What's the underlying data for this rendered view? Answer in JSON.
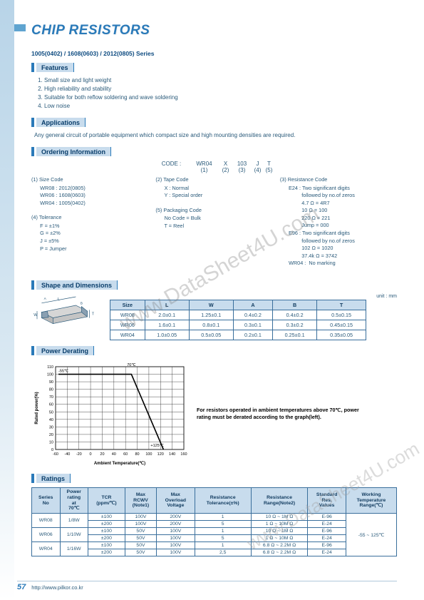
{
  "page": {
    "title": "CHIP RESISTORS",
    "series_line": "1005(0402) / 1608(0603) / 2012(0805) Series",
    "page_number": "57",
    "footer_url": "http://www.pilkor.co.kr",
    "watermark": "www.DataSheet4U.com"
  },
  "section_labels": {
    "features": "Features",
    "applications": "Applications",
    "ordering": "Ordering Information",
    "shape": "Shape and Dimensions",
    "derating": "Power Derating",
    "ratings": "Ratings"
  },
  "features": [
    "Small size and light weight",
    "High reliability and stability",
    "Suitable for both reflow soldering and wave soldering",
    "Low noise"
  ],
  "applications_text": "Any general circuit of portable equipment which compact size and high mounting densities are required.",
  "ordering": {
    "code_label": "CODE : ",
    "parts": [
      "WR04",
      "X",
      "103",
      "J",
      "T"
    ],
    "indices": [
      "(1)",
      "(2)",
      "(3)",
      "(4)",
      "(5)"
    ],
    "col1_a": {
      "title": "(1) Size Code",
      "lines": [
        "WR08 : 2012(0805)",
        "WR06 : 1608(0603)",
        "WR04 : 1005(0402)"
      ]
    },
    "col2_a": {
      "title": "(2) Tape Code",
      "lines": [
        "X : Normal",
        "Y : Special order"
      ]
    },
    "col3_a": {
      "title": "(3) Resistance Code",
      "lines": [
        "E24 : Two significant digits",
        "         followed by no.of zeros",
        "         4.7 Ω = 4R7",
        "         10 Ω = 100",
        "         220 Ω = 221",
        "         Jump = 000",
        "E96 : Two significant digits",
        "         followed by no.of zeros",
        "         102 Ω = 1020",
        "         37.4k Ω = 3742",
        "WR04 :  No marking"
      ]
    },
    "col1_b": {
      "title": "(4) Tolerance",
      "lines": [
        "F = ±1%",
        "G = ±2%",
        "J = ±5%",
        "P = Jumper"
      ]
    },
    "col2_b": {
      "title": "(5) Packaging Code",
      "lines": [
        "No Code = Bulk",
        "T = Reel"
      ]
    }
  },
  "dimensions": {
    "unit_label": "unit : mm",
    "dim_labels": {
      "L": "L",
      "W": "W",
      "A": "A",
      "B": "B",
      "T": "T"
    },
    "columns": [
      "Size",
      "L",
      "W",
      "A",
      "B",
      "T"
    ],
    "rows": [
      [
        "WR08",
        "2.0±0.1",
        "1.25±0.1",
        "0.4±0.2",
        "0.4±0.2",
        "0.5±0.15"
      ],
      [
        "WR06",
        "1.6±0.1",
        "0.8±0.1",
        "0.3±0.1",
        "0.3±0.2",
        "0.45±0.15"
      ],
      [
        "WR04",
        "1.0±0.05",
        "0.5±0.05",
        "0.2±0.1",
        "0.25±0.1",
        "0.35±0.05"
      ]
    ]
  },
  "derating": {
    "xlabel": "Ambient Temperature(℃)",
    "ylabel": "Rated power(%)",
    "xlim": [
      -60,
      160
    ],
    "ylim": [
      0,
      110
    ],
    "xticks": [
      -60,
      -40,
      -20,
      0,
      20,
      40,
      60,
      80,
      100,
      120,
      140,
      160
    ],
    "yticks": [
      0,
      10,
      20,
      30,
      40,
      50,
      60,
      70,
      80,
      90,
      100,
      110
    ],
    "annot": {
      "a": "-55℃",
      "b": "70℃",
      "c": "+125℃"
    },
    "note": "For resistors operated in ambient temperatures above 70℃, power rating must be derated according to the graph(left).",
    "line_points": [
      [
        -55,
        100
      ],
      [
        70,
        100
      ],
      [
        125,
        0
      ]
    ],
    "colors": {
      "grid": "#222",
      "line": "#000",
      "bg": "#ffffff"
    }
  },
  "ratings": {
    "columns": [
      "Series No",
      "Power rating at 70℃",
      "TCR (ppm/℃)",
      "Max RCWV (Note1)",
      "Max Overload Voltage",
      "Resistance Tolerance(±%)",
      "Resistance Range(Note2)",
      "Standard Res. Values",
      "Working Temperature Range(℃)"
    ],
    "rows": [
      {
        "series": "WR08",
        "power": "1/8W",
        "sub": [
          {
            "tcr": "±100",
            "rcwv": "100V",
            "ov": "200V",
            "tol": "1",
            "range": "10 Ω ~ 1M Ω",
            "std": "E-96"
          },
          {
            "tcr": "±200",
            "rcwv": "100V",
            "ov": "200V",
            "tol": "5",
            "range": "1 Ω ~ 10M Ω",
            "std": "E-24"
          }
        ]
      },
      {
        "series": "WR06",
        "power": "1/10W",
        "sub": [
          {
            "tcr": "±100",
            "rcwv": "50V",
            "ov": "100V",
            "tol": "1",
            "range": "10 Ω ~ 1M Ω",
            "std": "E-96"
          },
          {
            "tcr": "±200",
            "rcwv": "50V",
            "ov": "100V",
            "tol": "5",
            "range": "1 Ω ~ 10M Ω",
            "std": "E-24"
          }
        ]
      },
      {
        "series": "WR04",
        "power": "1/16W",
        "sub": [
          {
            "tcr": "±100",
            "rcwv": "50V",
            "ov": "100V",
            "tol": "1",
            "range": "6.8 Ω ~ 2.2M Ω",
            "std": "E-96"
          },
          {
            "tcr": "±200",
            "rcwv": "50V",
            "ov": "100V",
            "tol": "2,5",
            "range": "6.8 Ω ~ 2.2M Ω",
            "std": "E-24"
          }
        ]
      }
    ],
    "temp_range": "-55 ~ 125℃"
  },
  "colors": {
    "accent": "#2a7ab9",
    "heading_bg": "#c8dced",
    "border": "#3a6f9c",
    "text": "#2a5a7a"
  }
}
